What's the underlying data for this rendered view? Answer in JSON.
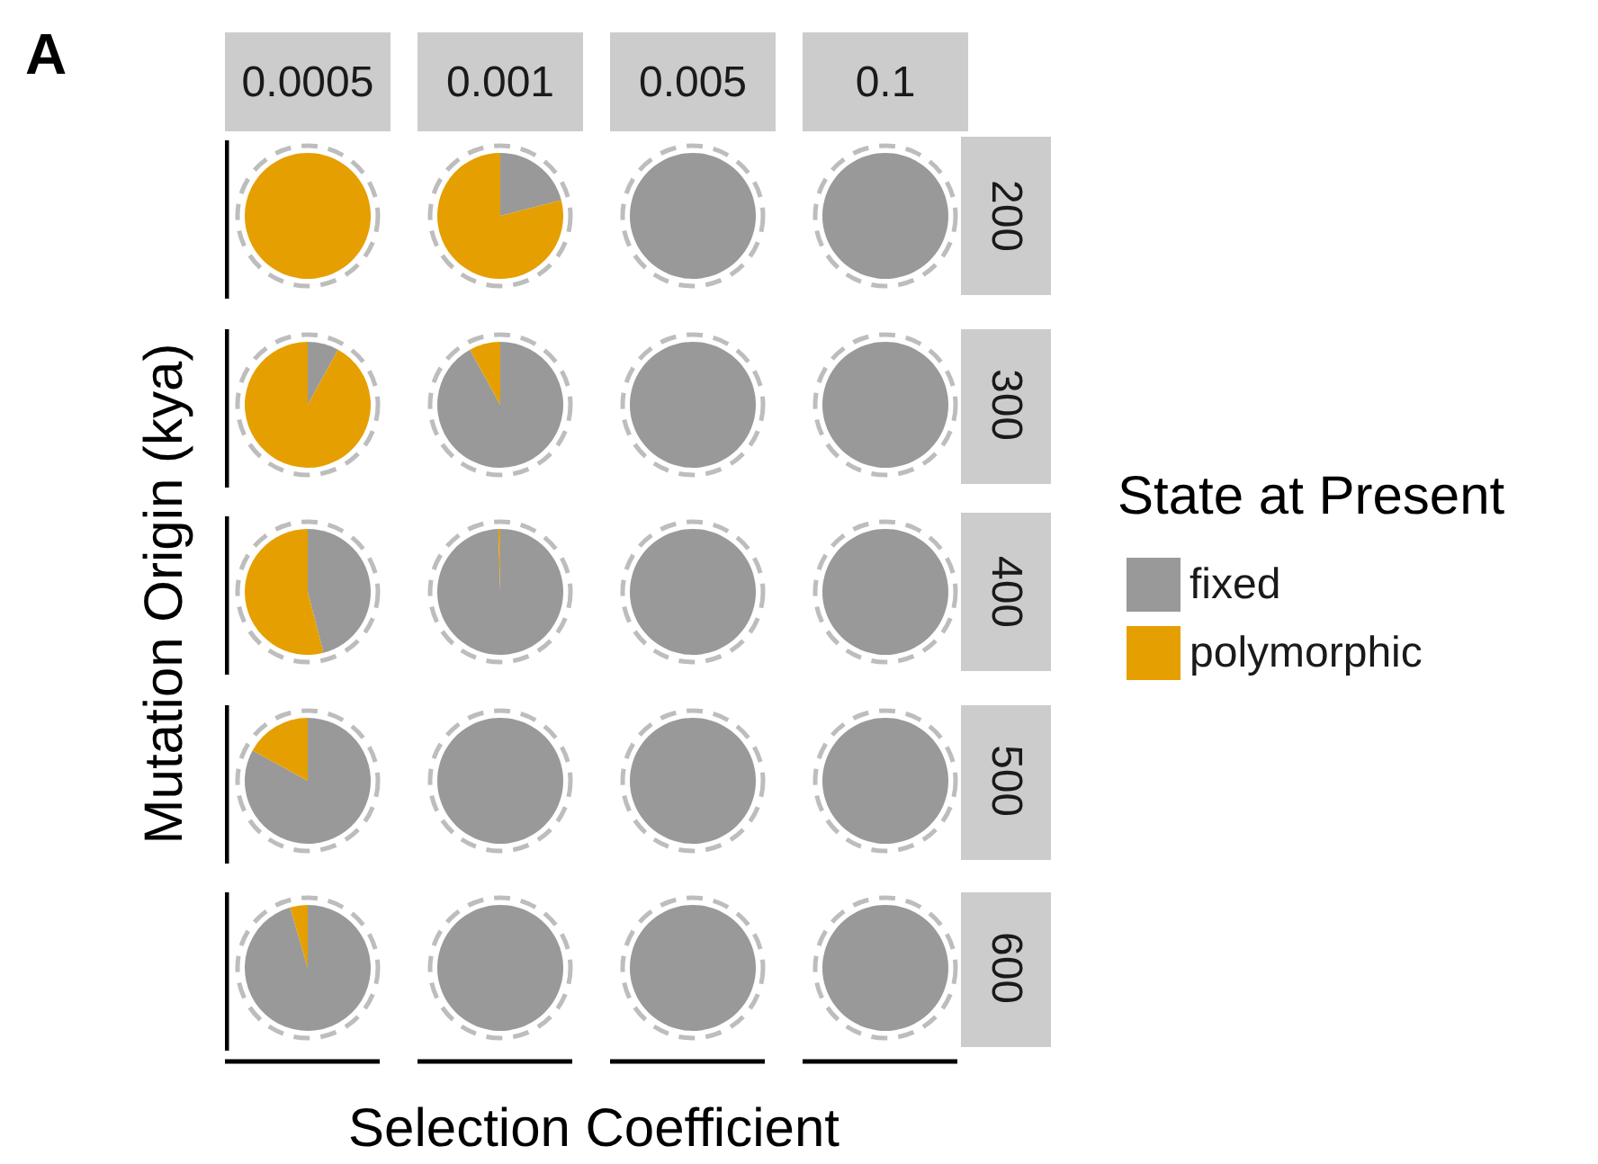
{
  "chart_data": [
    {
      "type": "other",
      "xlabel": "Selection Coefficient",
      "ylabel": "Mutation Origin (kya)",
      "annotations": [
        "A"
      ]
    },
    {
      "type": "pie",
      "title": "0.0005",
      "categories": [
        null,
        null
      ],
      "values": [
        0,
        100
      ],
      "colors": [
        "#999999",
        "#e69f00"
      ]
    },
    {
      "type": "pie",
      "title": "0.001",
      "categories": [
        null,
        null
      ],
      "values": [
        21,
        79
      ],
      "colors": [
        "#999999",
        "#e69f00"
      ]
    },
    {
      "type": "pie",
      "title": "0.005",
      "categories": [
        null,
        null
      ],
      "values": [
        100,
        0
      ],
      "colors": [
        "#999999",
        "#e69f00"
      ]
    },
    {
      "type": "pie",
      "title": "0.1",
      "y2label": "200",
      "categories": [
        null,
        null
      ],
      "values": [
        100,
        0
      ],
      "colors": [
        "#999999",
        "#e69f00"
      ]
    },
    {
      "type": "pie",
      "categories": [
        null,
        null
      ],
      "values": [
        8,
        92
      ],
      "colors": [
        "#999999",
        "#e69f00"
      ]
    },
    {
      "type": "pie",
      "categories": [
        null,
        null
      ],
      "values": [
        92,
        8
      ],
      "colors": [
        "#999999",
        "#e69f00"
      ]
    },
    {
      "type": "pie",
      "categories": [
        null,
        null
      ],
      "values": [
        100,
        0
      ],
      "colors": [
        "#999999",
        "#e69f00"
      ]
    },
    {
      "type": "pie",
      "y2label": "300",
      "categories": [
        null,
        null
      ],
      "values": [
        100,
        0
      ],
      "colors": [
        "#999999",
        "#e69f00"
      ]
    },
    {
      "type": "pie",
      "categories": [
        null,
        null
      ],
      "values": [
        46,
        54
      ],
      "colors": [
        "#999999",
        "#e69f00"
      ]
    },
    {
      "type": "pie",
      "categories": [
        null,
        null
      ],
      "values": [
        99.5,
        0.5
      ],
      "colors": [
        "#999999",
        "#e69f00"
      ]
    },
    {
      "type": "pie",
      "categories": [
        null,
        null
      ],
      "values": [
        100,
        0
      ],
      "colors": [
        "#999999",
        "#e69f00"
      ]
    },
    {
      "type": "pie",
      "y2label": "400",
      "legend": "right",
      "legend_title": "State at Present",
      "categories": [
        "fixed",
        "polymorphic"
      ],
      "values": [
        100,
        0
      ],
      "colors": [
        "#999999",
        "#e69f00"
      ]
    },
    {
      "type": "pie",
      "categories": [
        null,
        null
      ],
      "values": [
        83,
        17
      ],
      "colors": [
        "#999999",
        "#e69f00"
      ]
    },
    {
      "type": "pie",
      "categories": [
        null,
        null
      ],
      "values": [
        100,
        0
      ],
      "colors": [
        "#999999",
        "#e69f00"
      ]
    },
    {
      "type": "pie",
      "categories": [
        null,
        null
      ],
      "values": [
        100,
        0
      ],
      "colors": [
        "#999999",
        "#e69f00"
      ]
    },
    {
      "type": "pie",
      "y2label": "500",
      "categories": [
        null,
        null
      ],
      "values": [
        100,
        0
      ],
      "colors": [
        "#999999",
        "#e69f00"
      ]
    },
    {
      "type": "pie",
      "categories": [
        null,
        null
      ],
      "values": [
        95.5,
        4.5
      ],
      "colors": [
        "#999999",
        "#e69f00"
      ]
    },
    {
      "type": "pie",
      "categories": [
        null,
        null
      ],
      "values": [
        100,
        0
      ],
      "colors": [
        "#999999",
        "#e69f00"
      ]
    },
    {
      "type": "pie",
      "categories": [
        null,
        null
      ],
      "values": [
        100,
        0
      ],
      "colors": [
        "#999999",
        "#e69f00"
      ]
    },
    {
      "type": "pie",
      "y2label": "600",
      "categories": [
        null,
        null
      ],
      "values": [
        100,
        0
      ],
      "colors": [
        "#999999",
        "#e69f00"
      ]
    }
  ]
}
